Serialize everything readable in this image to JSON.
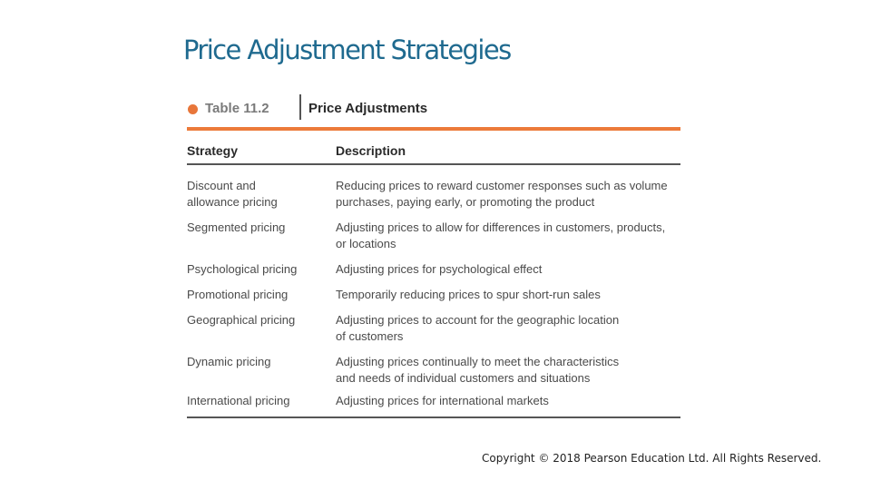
{
  "slide": {
    "title": "Price Adjustment Strategies",
    "copyright": "Copyright © 2018 Pearson Education Ltd. All Rights Reserved.",
    "accent_color": "#ec7a3a",
    "title_color": "#1f6a8f"
  },
  "table": {
    "number": "Table 11.2",
    "title": "Price Adjustments",
    "headers": {
      "strategy": "Strategy",
      "description": "Description"
    },
    "rows": [
      {
        "strategy": [
          "Discount and",
          "allowance pricing"
        ],
        "description": [
          "Reducing prices to reward customer responses such as volume",
          "purchases, paying early, or promoting the product"
        ]
      },
      {
        "strategy": [
          "Segmented pricing"
        ],
        "description": [
          "Adjusting prices to allow for differences in customers, products,",
          "or locations"
        ]
      },
      {
        "strategy": [
          "Psychological pricing"
        ],
        "description": [
          "Adjusting prices for psychological effect"
        ]
      },
      {
        "strategy": [
          "Promotional pricing"
        ],
        "description": [
          "Temporarily reducing prices to spur short-run sales"
        ]
      },
      {
        "strategy": [
          "Geographical pricing"
        ],
        "description": [
          "Adjusting prices to account for the geographic location",
          "of customers"
        ]
      },
      {
        "strategy": [
          "Dynamic pricing"
        ],
        "description": [
          "Adjusting prices continually to meet the characteristics",
          "and needs of individual customers and situations"
        ]
      },
      {
        "strategy": [
          "International pricing"
        ],
        "description": [
          "Adjusting prices for international markets"
        ]
      }
    ]
  }
}
